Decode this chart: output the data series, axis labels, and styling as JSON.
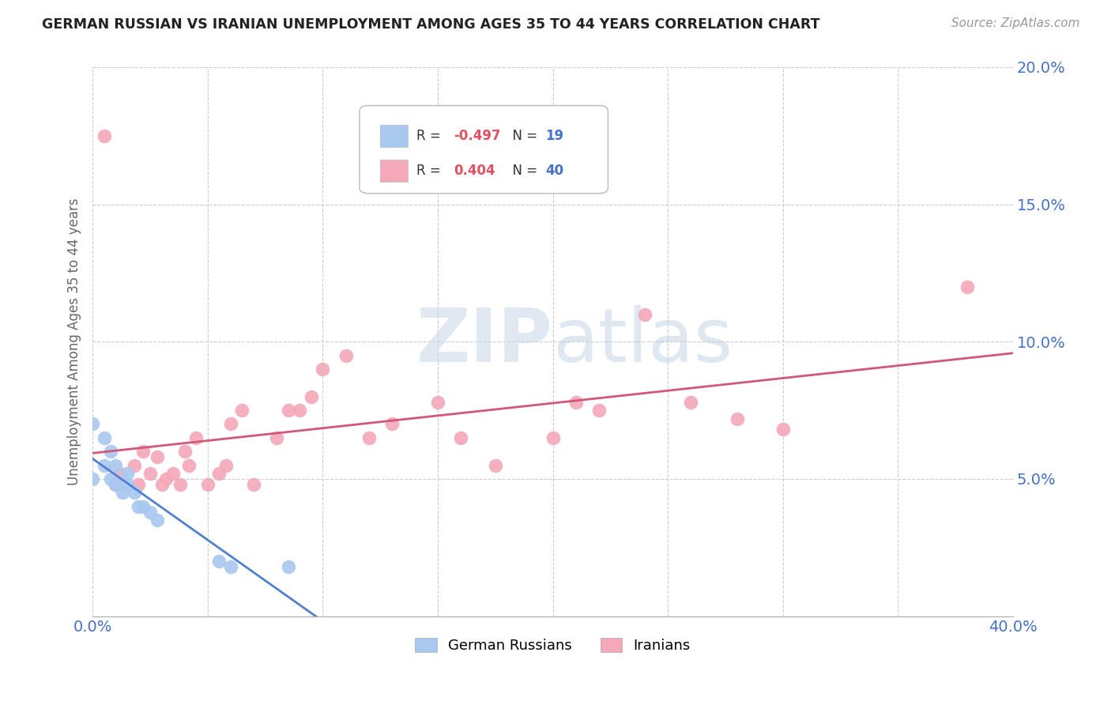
{
  "title": "GERMAN RUSSIAN VS IRANIAN UNEMPLOYMENT AMONG AGES 35 TO 44 YEARS CORRELATION CHART",
  "source": "Source: ZipAtlas.com",
  "ylabel": "Unemployment Among Ages 35 to 44 years",
  "xlim": [
    0.0,
    0.4
  ],
  "ylim": [
    0.0,
    0.2
  ],
  "xticks": [
    0.0,
    0.05,
    0.1,
    0.15,
    0.2,
    0.25,
    0.3,
    0.35,
    0.4
  ],
  "yticks": [
    0.0,
    0.05,
    0.1,
    0.15,
    0.2
  ],
  "german_russian_color": "#a8c8f0",
  "iranian_color": "#f4a8b8",
  "german_russian_line_color": "#5080d0",
  "iranian_line_color": "#d05878",
  "background_color": "#ffffff",
  "german_russian_x": [
    0.0,
    0.0,
    0.005,
    0.005,
    0.008,
    0.008,
    0.01,
    0.01,
    0.013,
    0.015,
    0.015,
    0.018,
    0.02,
    0.022,
    0.025,
    0.028,
    0.055,
    0.06,
    0.085
  ],
  "german_russian_y": [
    0.05,
    0.07,
    0.055,
    0.065,
    0.05,
    0.06,
    0.048,
    0.055,
    0.045,
    0.048,
    0.052,
    0.045,
    0.04,
    0.04,
    0.038,
    0.035,
    0.02,
    0.018,
    0.018
  ],
  "iranian_x": [
    0.005,
    0.01,
    0.012,
    0.018,
    0.02,
    0.022,
    0.025,
    0.028,
    0.03,
    0.032,
    0.035,
    0.038,
    0.04,
    0.042,
    0.045,
    0.05,
    0.055,
    0.058,
    0.06,
    0.065,
    0.07,
    0.08,
    0.085,
    0.09,
    0.095,
    0.1,
    0.11,
    0.12,
    0.13,
    0.15,
    0.16,
    0.175,
    0.2,
    0.21,
    0.22,
    0.24,
    0.26,
    0.28,
    0.3,
    0.38
  ],
  "iranian_y": [
    0.175,
    0.048,
    0.052,
    0.055,
    0.048,
    0.06,
    0.052,
    0.058,
    0.048,
    0.05,
    0.052,
    0.048,
    0.06,
    0.055,
    0.065,
    0.048,
    0.052,
    0.055,
    0.07,
    0.075,
    0.048,
    0.065,
    0.075,
    0.075,
    0.08,
    0.09,
    0.095,
    0.065,
    0.07,
    0.078,
    0.065,
    0.055,
    0.065,
    0.078,
    0.075,
    0.11,
    0.078,
    0.072,
    0.068,
    0.12
  ]
}
